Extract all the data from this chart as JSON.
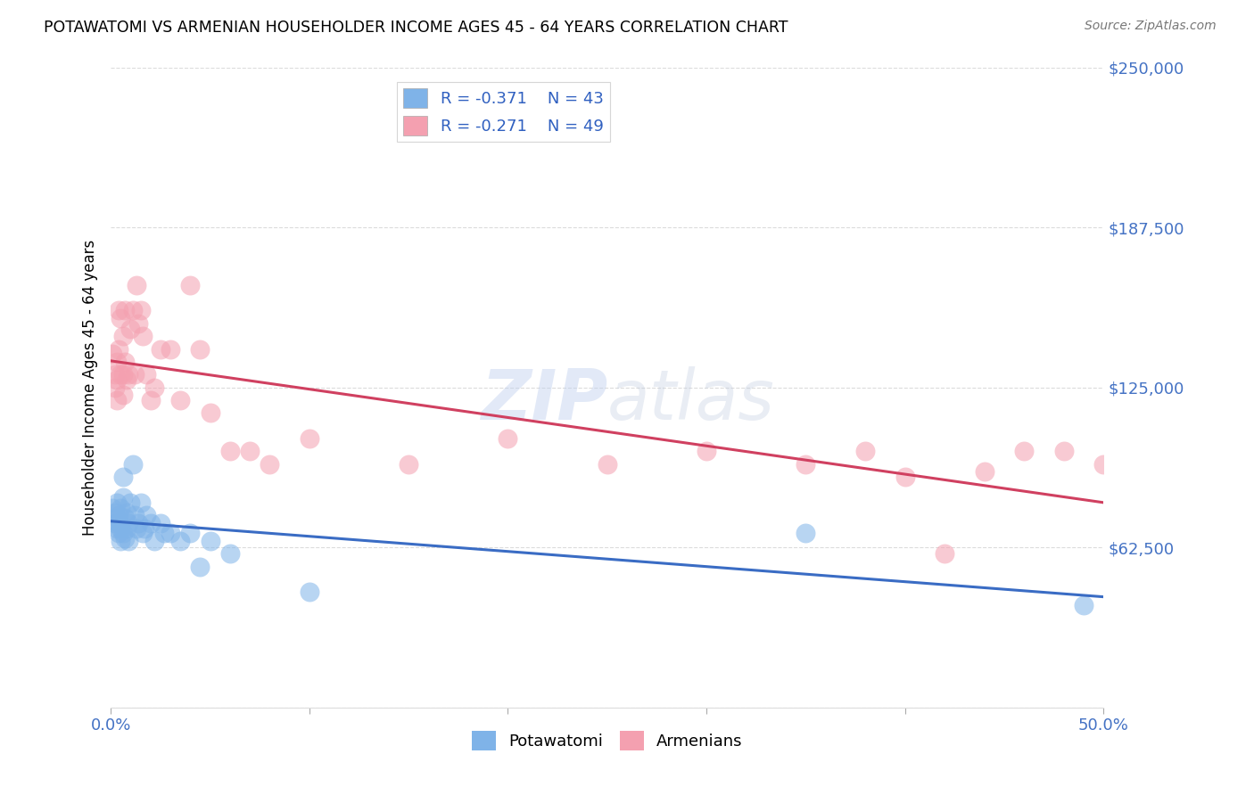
{
  "title": "POTAWATOMI VS ARMENIAN HOUSEHOLDER INCOME AGES 45 - 64 YEARS CORRELATION CHART",
  "source": "Source: ZipAtlas.com",
  "ylabel": "Householder Income Ages 45 - 64 years",
  "xlim": [
    0.0,
    0.5
  ],
  "ylim": [
    0,
    250000
  ],
  "ytick_vals": [
    0,
    62500,
    125000,
    187500,
    250000
  ],
  "ytick_labels": [
    "",
    "$62,500",
    "$125,000",
    "$187,500",
    "$250,000"
  ],
  "grid_color": "#cccccc",
  "background_color": "#ffffff",
  "blue_color": "#7fb3e8",
  "pink_color": "#f4a0b0",
  "blue_line_color": "#3a6cc4",
  "pink_line_color": "#d04060",
  "legend_label_blue": "Potawatomi",
  "legend_label_pink": "Armenians",
  "potawatomi_x": [
    0.001,
    0.002,
    0.002,
    0.003,
    0.003,
    0.003,
    0.004,
    0.004,
    0.004,
    0.005,
    0.005,
    0.005,
    0.006,
    0.006,
    0.006,
    0.007,
    0.007,
    0.008,
    0.008,
    0.009,
    0.009,
    0.01,
    0.011,
    0.012,
    0.013,
    0.014,
    0.015,
    0.016,
    0.017,
    0.018,
    0.02,
    0.022,
    0.025,
    0.027,
    0.03,
    0.035,
    0.04,
    0.045,
    0.05,
    0.06,
    0.1,
    0.35,
    0.49
  ],
  "potawatomi_y": [
    78000,
    76000,
    72000,
    80000,
    74000,
    70000,
    75000,
    68000,
    72000,
    78000,
    65000,
    70000,
    90000,
    82000,
    68000,
    74000,
    66000,
    70000,
    76000,
    72000,
    65000,
    80000,
    95000,
    75000,
    70000,
    72000,
    80000,
    68000,
    70000,
    75000,
    72000,
    65000,
    72000,
    68000,
    68000,
    65000,
    68000,
    55000,
    65000,
    60000,
    45000,
    68000,
    40000
  ],
  "armenian_x": [
    0.001,
    0.002,
    0.002,
    0.003,
    0.003,
    0.003,
    0.004,
    0.004,
    0.005,
    0.005,
    0.006,
    0.006,
    0.006,
    0.007,
    0.007,
    0.008,
    0.009,
    0.01,
    0.011,
    0.012,
    0.013,
    0.014,
    0.015,
    0.016,
    0.018,
    0.02,
    0.022,
    0.025,
    0.03,
    0.035,
    0.04,
    0.045,
    0.05,
    0.06,
    0.07,
    0.08,
    0.1,
    0.15,
    0.2,
    0.25,
    0.3,
    0.35,
    0.38,
    0.4,
    0.42,
    0.44,
    0.46,
    0.48,
    0.5
  ],
  "armenian_y": [
    138000,
    130000,
    125000,
    135000,
    128000,
    120000,
    155000,
    140000,
    152000,
    130000,
    145000,
    130000,
    122000,
    155000,
    135000,
    128000,
    130000,
    148000,
    155000,
    130000,
    165000,
    150000,
    155000,
    145000,
    130000,
    120000,
    125000,
    140000,
    140000,
    120000,
    165000,
    140000,
    115000,
    100000,
    100000,
    95000,
    105000,
    95000,
    105000,
    95000,
    100000,
    95000,
    100000,
    90000,
    60000,
    92000,
    100000,
    100000,
    95000
  ]
}
